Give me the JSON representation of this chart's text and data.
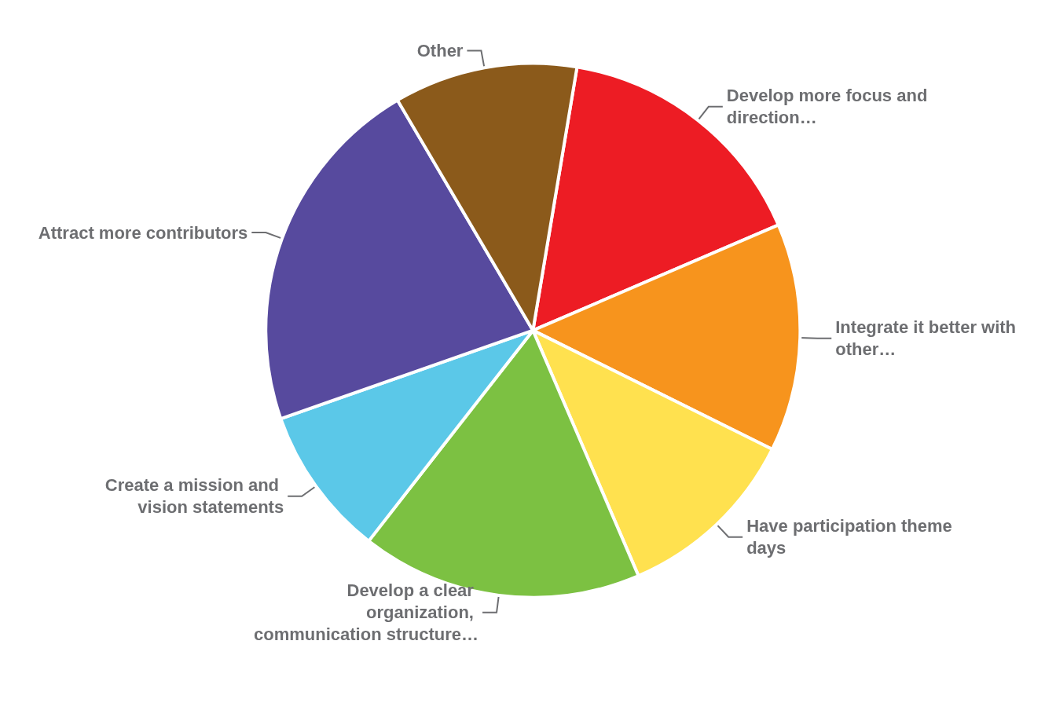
{
  "chart_data": {
    "type": "pie",
    "categories": [
      "Develop more focus and direction…",
      "Integrate it better with other…",
      "Have participation theme days",
      "Develop a clear organization, communication structure…",
      "Create a mission and vision statements",
      "Attract more contributors",
      "Other"
    ],
    "values": [
      15.9,
      13.8,
      11.2,
      17.0,
      9.1,
      21.9,
      11.1
    ],
    "colors": [
      "#ed1c24",
      "#f7941d",
      "#ffe14f",
      "#7cc142",
      "#5bc8e8",
      "#574a9e",
      "#8b5a1b"
    ]
  }
}
